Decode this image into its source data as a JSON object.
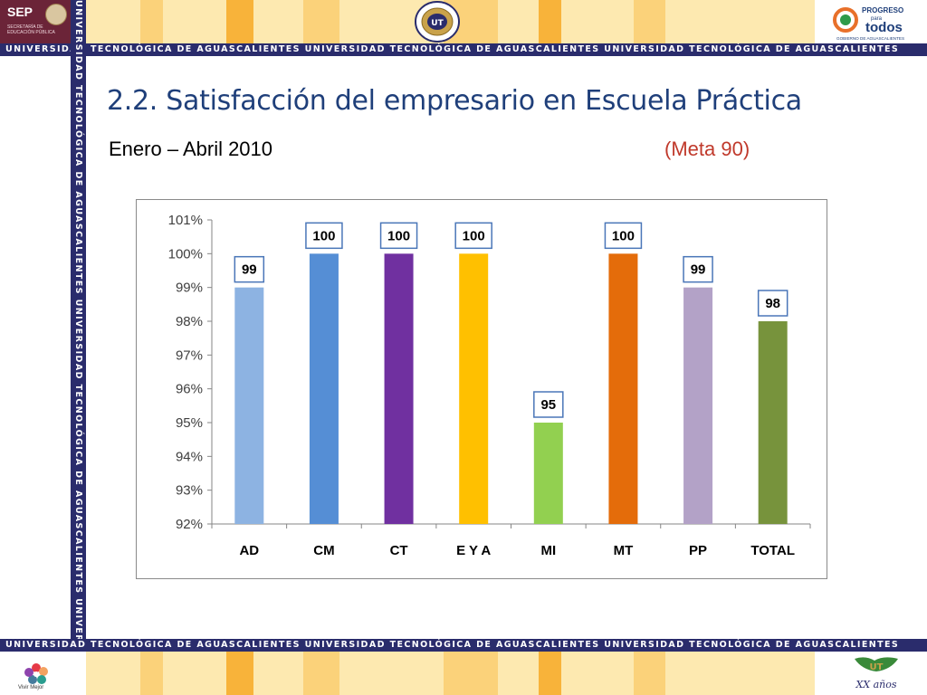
{
  "header": {
    "sep_label": "SEP",
    "sep_subtitle": "SECRETARÍA DE EDUCACIÓN PÚBLICA",
    "progreso_line1": "PROGRESO",
    "progreso_line2": "para",
    "progreso_line3": "todos",
    "progreso_sub": "GOBIERNO DE AGUASCALIENTES",
    "banner_text": "UNIVERSIDAD TECNOLÓGICA DE AGUASCALIENTES   UNIVERSIDAD TECNOLÓGICA DE AGUASCALIENTES   UNIVERSIDAD TECNOLÓGICA DE AGUASCALIENTES",
    "vertical_text": "UNIVERSIDAD TECNOLÓGICA DE AGUASCALIENTES   UNIVERSIDAD TECNOLÓGICA DE AGUASCALIENTES   UNIVERSIDAD TECNOLÓGICA DE AGUASCALIENTES"
  },
  "footer": {
    "vivir_label": "Vivir Mejor",
    "ut_years": "XX años"
  },
  "colors": {
    "navy": "#2a2c6c",
    "stripe_light": "#fde9b0",
    "stripe_mid": "#fbd27a",
    "stripe_orange": "#f8b33a",
    "title": "#1f3f7a",
    "meta": "#c0392b"
  },
  "slide": {
    "title": "2.2. Satisfacción del empresario en Escuela Práctica",
    "period": "Enero – Abril 2010",
    "meta": "(Meta 90)"
  },
  "chart_data": {
    "type": "bar",
    "categories": [
      "AD",
      "CM",
      "CT",
      "E Y A",
      "MI",
      "MT",
      "PP",
      "TOTAL"
    ],
    "values": [
      99,
      100,
      100,
      100,
      95,
      100,
      99,
      98
    ],
    "data_labels": [
      "99",
      "100",
      "100",
      "100",
      "95",
      "100",
      "99",
      "98"
    ],
    "bar_colors": [
      "#8db3e2",
      "#558ed5",
      "#7030a0",
      "#ffc000",
      "#92d050",
      "#e46c0a",
      "#b3a2c7",
      "#77933c"
    ],
    "ylim": [
      92,
      101
    ],
    "yticks": [
      "92%",
      "93%",
      "94%",
      "95%",
      "96%",
      "97%",
      "98%",
      "99%",
      "100%",
      "101%"
    ],
    "grid": false,
    "legend": "none"
  }
}
